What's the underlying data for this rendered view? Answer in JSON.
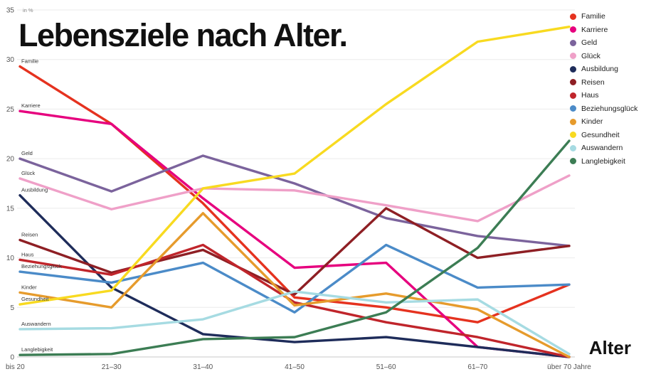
{
  "title": "Lebensziele nach Alter.",
  "chart_data": {
    "type": "line",
    "title": "Lebensziele nach Alter.",
    "xlabel": "Alter",
    "categories": [
      "bis 20",
      "21–30",
      "31–40",
      "41–50",
      "51–60",
      "61–70",
      "über 70 Jahre"
    ],
    "y_axis": {
      "min": 0,
      "max": 35,
      "step": 5,
      "unit_label": "in %"
    },
    "grid": true,
    "legend_position": "top-right",
    "series": [
      {
        "name": "Familie",
        "color": "#e5321f",
        "values": [
          29.3,
          23.5,
          15.5,
          6.0,
          5.0,
          3.5,
          7.3
        ]
      },
      {
        "name": "Karriere",
        "color": "#e6007e",
        "values": [
          24.8,
          23.5,
          16.0,
          9.0,
          9.5,
          1.0,
          0.0
        ]
      },
      {
        "name": "Geld",
        "color": "#7b639c",
        "values": [
          20.0,
          16.7,
          20.3,
          17.5,
          14.0,
          12.2,
          11.2
        ]
      },
      {
        "name": "Glück",
        "color": "#efa0c8",
        "values": [
          18.0,
          14.9,
          17.0,
          16.8,
          15.3,
          13.7,
          18.3
        ]
      },
      {
        "name": "Ausbildung",
        "color": "#1e2c5a",
        "values": [
          16.3,
          7.0,
          2.3,
          1.5,
          2.0,
          1.0,
          0.0
        ]
      },
      {
        "name": "Reisen",
        "color": "#8e1f24",
        "values": [
          11.8,
          8.5,
          10.8,
          6.3,
          15.0,
          10.0,
          11.2
        ]
      },
      {
        "name": "Haus",
        "color": "#c0252b",
        "values": [
          9.8,
          8.3,
          11.3,
          5.5,
          3.5,
          2.0,
          0.0
        ]
      },
      {
        "name": "Beziehungsglück",
        "color": "#4b8bc8",
        "values": [
          8.6,
          7.5,
          9.5,
          4.5,
          11.3,
          7.0,
          7.3
        ]
      },
      {
        "name": "Kinder",
        "color": "#e69b2c",
        "values": [
          6.5,
          5.0,
          14.5,
          5.2,
          6.4,
          4.8,
          0.0
        ]
      },
      {
        "name": "Gesundheit",
        "color": "#f8da20",
        "values": [
          5.3,
          6.7,
          17.0,
          18.5,
          25.5,
          31.8,
          33.3
        ]
      },
      {
        "name": "Auswandern",
        "color": "#a6dbe2",
        "values": [
          2.8,
          2.9,
          3.8,
          6.6,
          5.5,
          5.8,
          0.3
        ]
      },
      {
        "name": "Langlebigkeit",
        "color": "#3c7d54",
        "values": [
          0.2,
          0.3,
          1.8,
          2.0,
          4.5,
          11.0,
          21.8
        ]
      }
    ]
  }
}
